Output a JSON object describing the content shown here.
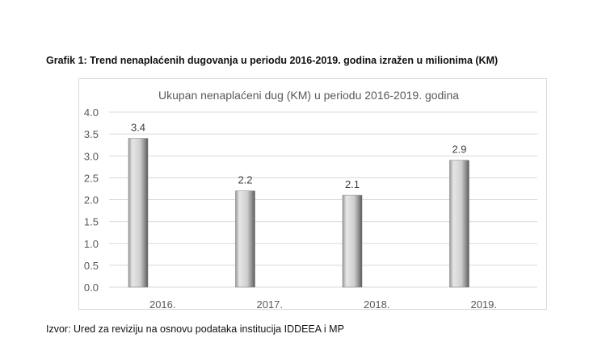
{
  "caption": "Grafik 1: Trend nenaplaćenih dugovanja u periodu 2016-2019. godina izražen u milionima (KM)",
  "source": "Izvor: Ured za reviziju na osnovu podataka institucija IDDEEA i MP",
  "chart_data": {
    "type": "bar",
    "title": "Ukupan nenaplaćeni dug (KM) u periodu 2016-2019. godina",
    "categories": [
      "2016.",
      "2017.",
      "2018.",
      "2019."
    ],
    "values": [
      3.4,
      2.2,
      2.1,
      2.9
    ],
    "data_labels": [
      "3.4",
      "2.2",
      "2.1",
      "2.9"
    ],
    "xlabel": "",
    "ylabel": "",
    "ylim": [
      0,
      4.0
    ],
    "yticks": [
      "0.0",
      "0.5",
      "1.0",
      "1.5",
      "2.0",
      "2.5",
      "3.0",
      "3.5",
      "4.0"
    ],
    "grid": true,
    "legend": "none",
    "bar_color": "#c8c8c8"
  }
}
